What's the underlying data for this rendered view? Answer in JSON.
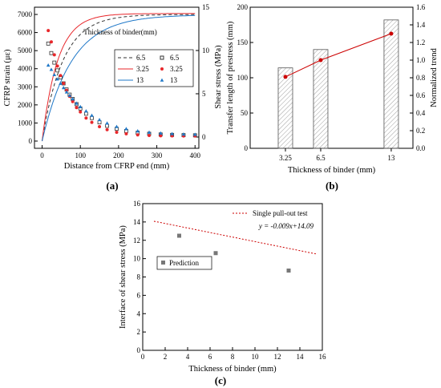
{
  "colors": {
    "red": "#e8272b",
    "blue": "#1f78c8",
    "black": "#333333",
    "trend": "#cc0000",
    "gray": "#777777"
  },
  "panel_labels": {
    "a": "(a)",
    "b": "(b)",
    "c": "(c)"
  },
  "chart_data": [
    {
      "id": "a",
      "type": "line",
      "xlabel": "Distance from CFRP  end (mm)",
      "ylabel": "CFRP strain (με)",
      "y2label": "Shear stress (MPa)",
      "xlim": [
        -20,
        410
      ],
      "ylim": [
        -400,
        7400
      ],
      "y2lim": [
        -1.3,
        15
      ],
      "xticks": [
        0,
        100,
        200,
        300,
        400
      ],
      "yticks": [
        0,
        1000,
        2000,
        3000,
        4000,
        5000,
        6000,
        7000
      ],
      "y2ticks": [
        0,
        5,
        10,
        15
      ],
      "legend_title": "Thickness of binder(mm)",
      "legend_placement": "middle-right",
      "strain_series": [
        {
          "name": "6.5",
          "color": "#333333",
          "dash": true,
          "y_max": 7000,
          "k": 0.0185
        },
        {
          "name": "3.25",
          "color": "#e8272b",
          "dash": false,
          "y_max": 7050,
          "k": 0.0245
        },
        {
          "name": "13",
          "color": "#1f78c8",
          "dash": false,
          "y_max": 6980,
          "k": 0.013
        }
      ],
      "shear_series": [
        {
          "name": "6.5",
          "marker": "open-square",
          "color": "#333333",
          "x": [
            16,
            24,
            32,
            40,
            48,
            56,
            64,
            72,
            80,
            90,
            100,
            115,
            130,
            150,
            170,
            195,
            220,
            250,
            280,
            310,
            340,
            370,
            400
          ],
          "y": [
            10.8,
            9.7,
            8.6,
            7.7,
            6.9,
            6.2,
            5.5,
            4.9,
            4.4,
            3.8,
            3.3,
            2.7,
            2.2,
            1.7,
            1.3,
            0.95,
            0.7,
            0.5,
            0.38,
            0.3,
            0.25,
            0.22,
            0.2
          ]
        },
        {
          "name": "3.25",
          "marker": "filled-circle",
          "color": "#e8272b",
          "x": [
            16,
            24,
            32,
            40,
            48,
            56,
            64,
            72,
            80,
            90,
            100,
            115,
            130,
            150,
            170,
            195,
            220,
            250,
            280,
            310,
            340,
            370,
            400
          ],
          "y": [
            12.3,
            11.0,
            9.5,
            8.2,
            7.1,
            6.2,
            5.4,
            4.7,
            4.1,
            3.4,
            2.9,
            2.2,
            1.7,
            1.2,
            0.85,
            0.55,
            0.38,
            0.25,
            0.18,
            0.15,
            0.13,
            0.12,
            0.12
          ]
        },
        {
          "name": "13",
          "marker": "filled-triangle",
          "color": "#1f78c8",
          "x": [
            16,
            24,
            32,
            40,
            48,
            56,
            64,
            72,
            80,
            90,
            100,
            115,
            130,
            150,
            170,
            195,
            220,
            250,
            280,
            310,
            340,
            370,
            400
          ],
          "y": [
            8.3,
            7.8,
            7.2,
            6.7,
            6.2,
            5.7,
            5.2,
            4.8,
            4.4,
            3.9,
            3.5,
            3.0,
            2.5,
            2.0,
            1.6,
            1.2,
            0.95,
            0.7,
            0.55,
            0.45,
            0.38,
            0.33,
            0.3
          ]
        }
      ]
    },
    {
      "id": "b",
      "type": "bar",
      "xlabel": "Thickness of binder (mm)",
      "ylabel": "Transfer length of prestress (mm)",
      "y2label": "Normalized trend",
      "categories": [
        "3.25",
        "6.5",
        "13"
      ],
      "x_positions": [
        3.25,
        6.5,
        13
      ],
      "xlim": [
        0,
        15
      ],
      "values": [
        114,
        140,
        182
      ],
      "ylim": [
        0,
        200
      ],
      "yticks": [
        0,
        50,
        100,
        150,
        200
      ],
      "trend": {
        "values": [
          0.81,
          1.0,
          1.3
        ],
        "y2lim": [
          0,
          1.6
        ],
        "y2ticks": [
          0.0,
          0.2,
          0.4,
          0.6,
          0.8,
          1.0,
          1.2,
          1.4,
          1.6
        ]
      }
    },
    {
      "id": "c",
      "type": "scatter",
      "xlabel": "Thickness of binder (mm)",
      "ylabel": "Interface of shear stress (MPa)",
      "xlim": [
        0,
        16
      ],
      "ylim": [
        0,
        16
      ],
      "xticks": [
        0,
        2,
        4,
        6,
        8,
        10,
        12,
        14,
        16
      ],
      "yticks": [
        0,
        2,
        4,
        6,
        8,
        10,
        12,
        14,
        16
      ],
      "points": {
        "name": "Prediction",
        "x": [
          3.25,
          6.5,
          13
        ],
        "y": [
          12.5,
          10.6,
          8.7
        ]
      },
      "fit": {
        "name": "Single pull-out test",
        "slope": -0.009,
        "intercept": 14.09,
        "x_range": [
          1,
          15.5
        ],
        "equation": "y = -0.009x+14.09"
      }
    }
  ]
}
